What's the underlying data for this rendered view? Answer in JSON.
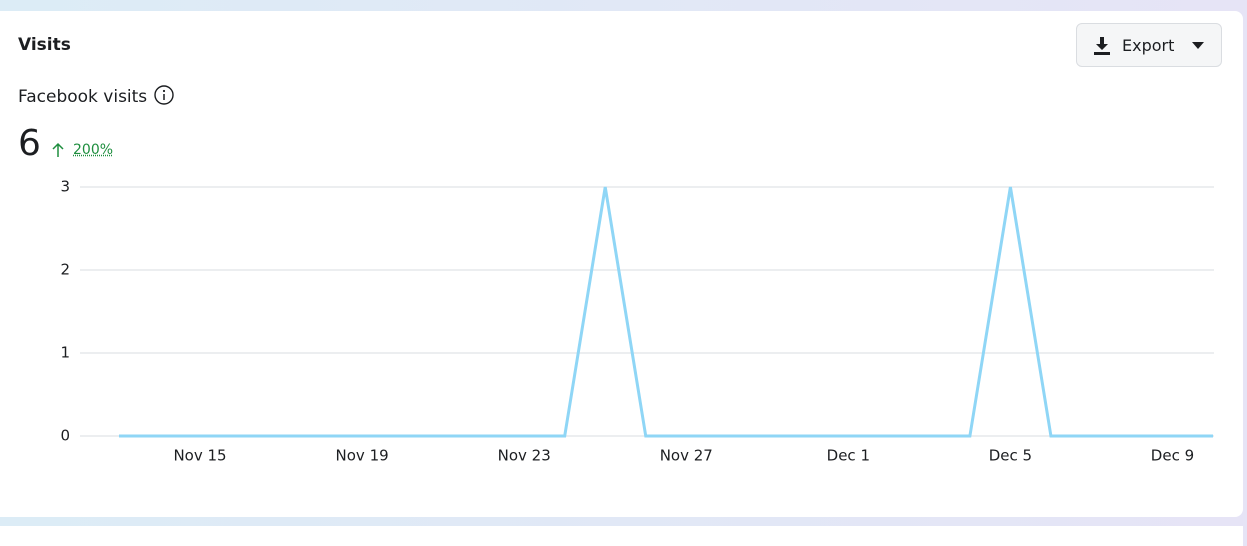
{
  "header": {
    "title": "Visits",
    "export_button": "Export"
  },
  "metric": {
    "label": "Facebook visits",
    "value": "6",
    "change": "200%"
  },
  "chart_data": {
    "type": "line",
    "categories": [
      null,
      null,
      "Nov 15",
      null,
      null,
      null,
      "Nov 19",
      null,
      null,
      null,
      "Nov 23",
      null,
      null,
      null,
      "Nov 27",
      null,
      null,
      null,
      "Dec 1",
      null,
      null,
      null,
      "Dec 5",
      null,
      null,
      null,
      "Dec 9",
      null
    ],
    "series": [
      {
        "color": "#8fd6f6",
        "values": [
          0,
          0,
          0,
          0,
          0,
          0,
          0,
          0,
          0,
          0,
          0,
          0,
          3,
          0,
          0,
          0,
          0,
          0,
          0,
          0,
          0,
          0,
          3,
          0,
          0,
          0,
          0,
          0
        ]
      }
    ],
    "ylim": [
      0,
      3
    ],
    "yticks": [
      0,
      1,
      2,
      3
    ],
    "grid": true
  }
}
